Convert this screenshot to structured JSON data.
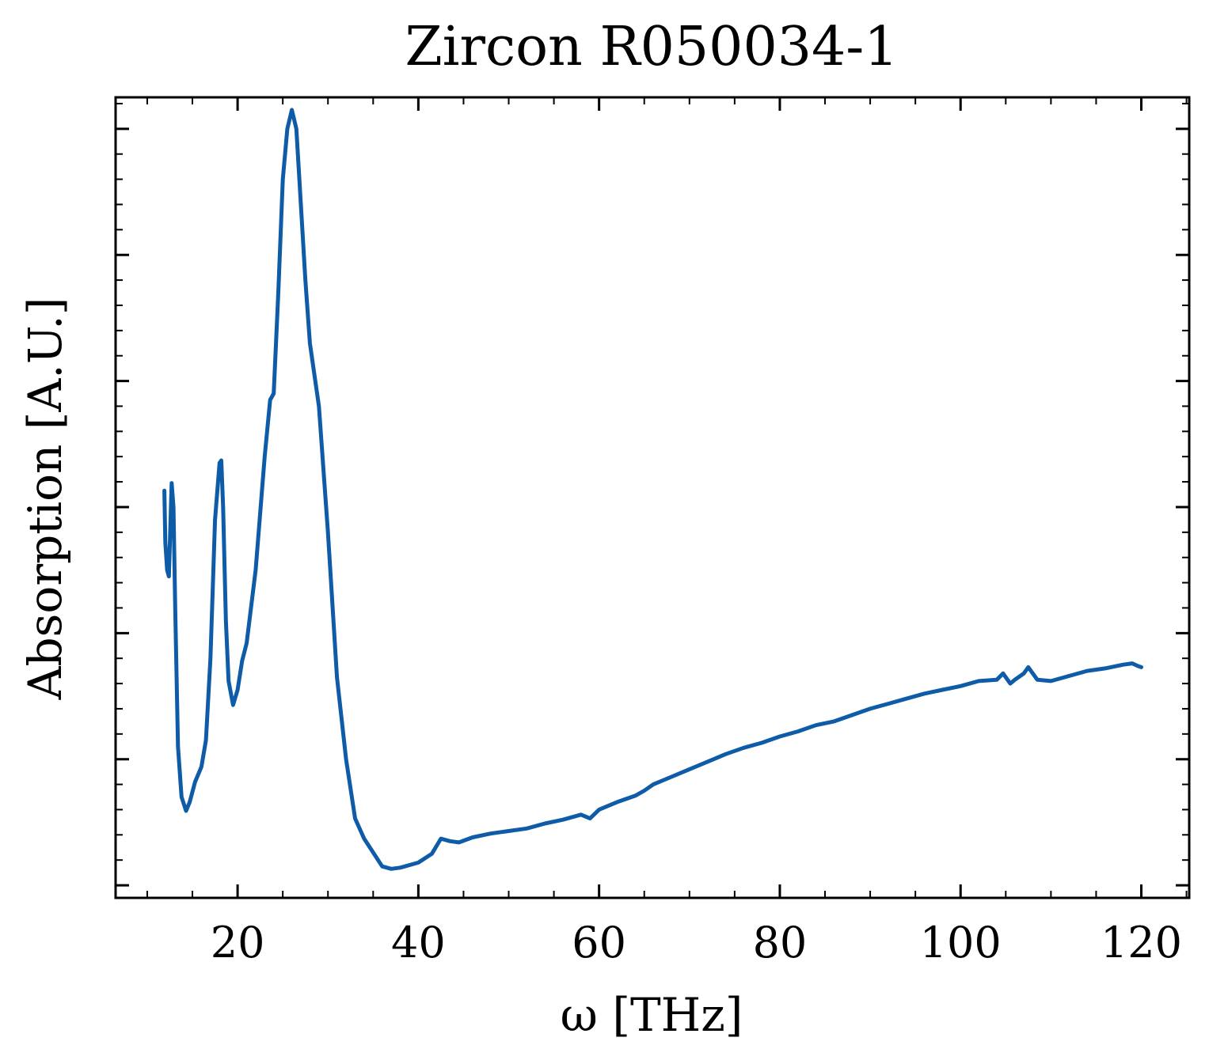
{
  "chart_data": {
    "type": "line",
    "title": "Zircon R050034-1",
    "xlabel": "ω [THz]",
    "ylabel": "Absorption [A.U.]",
    "xlim": [
      6.5,
      125.3
    ],
    "ylim": [
      0.9,
      7.25
    ],
    "x_ticks": [
      20,
      40,
      60,
      80,
      100,
      120
    ],
    "x_tick_labels": [
      "20",
      "40",
      "60",
      "80",
      "100",
      "120"
    ],
    "y_ticks": [
      1,
      2,
      3,
      4,
      5,
      6,
      7
    ],
    "y_tick_labels_shown": false,
    "grid": false,
    "line_color": "#0e5ca8",
    "series": [
      {
        "x": [
          11.9,
          12.0,
          12.2,
          12.4,
          12.7,
          12.9,
          13.1,
          13.4,
          13.8,
          14.3,
          14.7,
          15.3,
          16.0,
          16.5,
          17.0,
          17.5,
          18.0,
          18.2,
          18.4,
          18.7,
          19.0,
          19.5,
          20.0,
          20.5,
          21.0,
          22.0,
          23.0,
          23.6,
          24.0,
          24.5,
          25.0,
          25.5,
          26.0,
          26.5,
          27.0,
          27.5,
          28.0,
          29.0,
          30.0,
          31.0,
          32.0,
          33.0,
          34.0,
          35.0,
          36.0,
          37.0,
          38.0,
          40.0,
          41.5,
          42.5,
          43.5,
          44.5,
          46.0,
          48.0,
          50.0,
          52.0,
          54.0,
          56.0,
          58.0,
          59.0,
          60.0,
          62.0,
          64.0,
          65.0,
          66.0,
          68.0,
          70.0,
          72.0,
          74.0,
          76.0,
          78.0,
          80.0,
          82.0,
          84.0,
          86.0,
          88.0,
          90.0,
          92.0,
          94.0,
          96.0,
          98.0,
          100.0,
          102.0,
          104.0,
          104.7,
          105.5,
          106.0,
          107.0,
          107.5,
          108.5,
          110.0,
          112.0,
          114.0,
          116.0,
          118.0,
          119.0,
          119.6,
          120.0
        ],
        "y": [
          4.13,
          3.72,
          3.5,
          3.45,
          4.19,
          4.0,
          3.2,
          2.1,
          1.7,
          1.59,
          1.66,
          1.82,
          1.94,
          2.15,
          2.8,
          3.9,
          4.35,
          4.37,
          4.0,
          3.1,
          2.62,
          2.43,
          2.55,
          2.78,
          2.92,
          3.5,
          4.4,
          4.85,
          4.9,
          5.7,
          6.6,
          7.0,
          7.15,
          7.0,
          6.4,
          5.8,
          5.3,
          4.8,
          3.8,
          2.65,
          2.0,
          1.53,
          1.37,
          1.26,
          1.15,
          1.13,
          1.14,
          1.18,
          1.25,
          1.37,
          1.35,
          1.34,
          1.38,
          1.41,
          1.43,
          1.45,
          1.49,
          1.52,
          1.56,
          1.53,
          1.6,
          1.66,
          1.71,
          1.75,
          1.8,
          1.86,
          1.92,
          1.98,
          2.04,
          2.09,
          2.13,
          2.18,
          2.22,
          2.27,
          2.3,
          2.35,
          2.4,
          2.44,
          2.48,
          2.52,
          2.55,
          2.58,
          2.62,
          2.63,
          2.68,
          2.6,
          2.63,
          2.68,
          2.73,
          2.63,
          2.62,
          2.66,
          2.7,
          2.72,
          2.75,
          2.76,
          2.74,
          2.73
        ]
      }
    ]
  }
}
